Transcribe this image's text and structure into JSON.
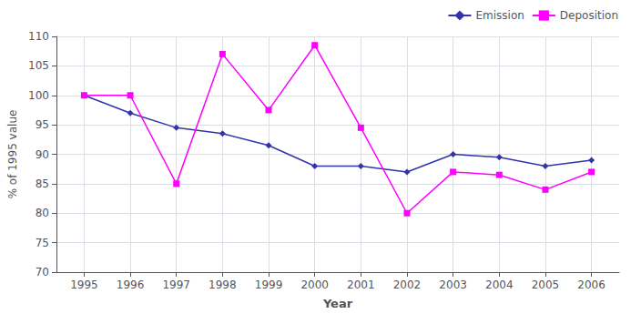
{
  "chart_data": {
    "type": "line",
    "xlabel": "Year",
    "ylabel": "% of 1995 value",
    "x": [
      1995,
      1996,
      1997,
      1998,
      1999,
      2000,
      2001,
      2002,
      2003,
      2004,
      2005,
      2006
    ],
    "series": [
      {
        "name": "Emission",
        "color": "#3333AA",
        "marker": "diamond",
        "values": [
          100,
          97,
          94.5,
          93.5,
          91.5,
          88,
          88,
          87,
          90,
          89.5,
          88,
          89
        ]
      },
      {
        "name": "Deposition",
        "color": "#FF00FF",
        "marker": "square",
        "values": [
          100,
          100,
          85,
          107,
          97.5,
          108.5,
          94.5,
          80,
          87,
          86.5,
          84,
          87
        ]
      }
    ],
    "xlim": [
      1994.4,
      2006.6
    ],
    "xticks": [
      1995,
      1996,
      1997,
      1998,
      1999,
      2000,
      2001,
      2002,
      2003,
      2004,
      2005,
      2006
    ],
    "ylim": [
      70,
      110
    ],
    "yticks": [
      70,
      75,
      80,
      85,
      90,
      95,
      100,
      105,
      110
    ],
    "grid": true,
    "legend": "upper right"
  }
}
